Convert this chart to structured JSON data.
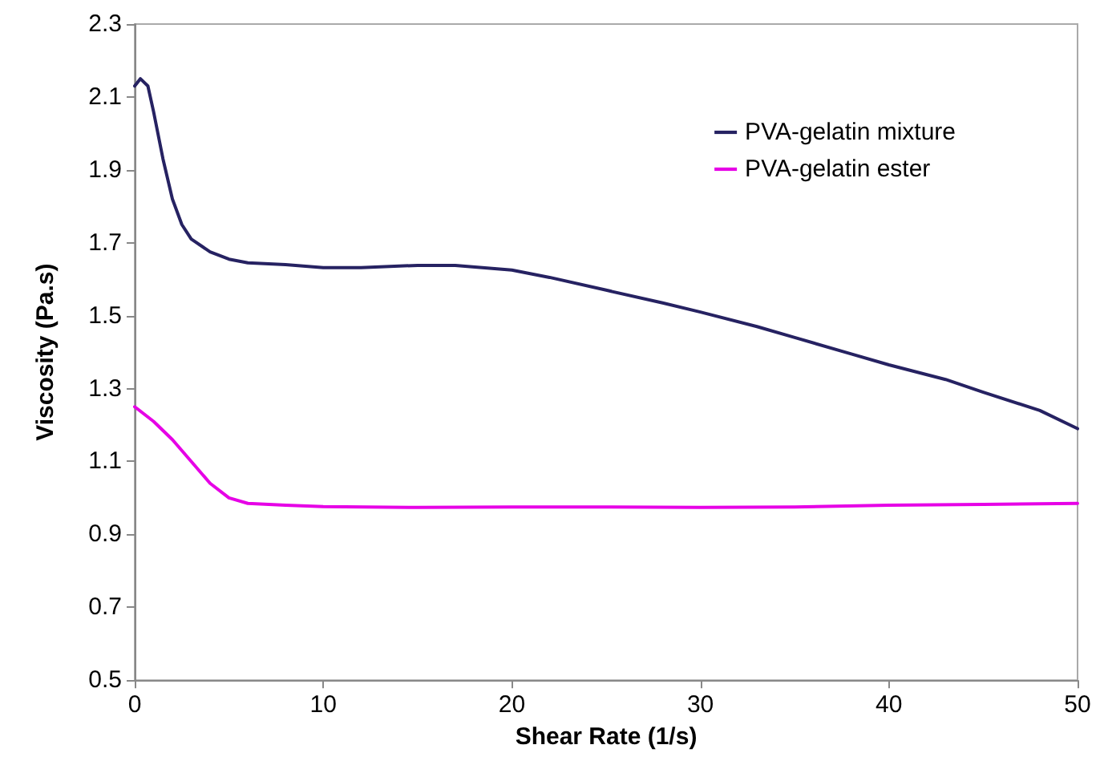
{
  "chart_data": {
    "type": "line",
    "xlabel": "Shear Rate (1/s)",
    "ylabel": "Viscosity (Pa.s)",
    "xlim": [
      0,
      50
    ],
    "xticks": [
      0,
      10,
      20,
      30,
      40,
      50
    ],
    "ylim": [
      0.5,
      2.3
    ],
    "yticks": [
      0.5,
      0.7,
      0.9,
      1.1,
      1.3,
      1.5,
      1.7,
      1.9,
      2.1,
      2.3
    ],
    "grid": false,
    "legend": "top right",
    "marker": "none",
    "line_style": "solid",
    "series": [
      {
        "name": "PVA-gelatin mixture",
        "color": "#262262",
        "x": [
          0,
          0.3,
          0.7,
          1,
          1.5,
          2,
          2.5,
          3,
          4,
          5,
          6,
          8,
          10,
          12,
          15,
          17,
          20,
          22,
          25,
          28,
          30,
          33,
          35,
          38,
          40,
          43,
          45,
          48,
          50
        ],
        "values": [
          2.13,
          2.15,
          2.13,
          2.06,
          1.93,
          1.82,
          1.75,
          1.71,
          1.675,
          1.655,
          1.645,
          1.64,
          1.632,
          1.632,
          1.638,
          1.638,
          1.625,
          1.605,
          1.57,
          1.535,
          1.51,
          1.47,
          1.44,
          1.395,
          1.365,
          1.325,
          1.29,
          1.24,
          1.19
        ]
      },
      {
        "name": "PVA-gelatin ester",
        "color": "#e600e6",
        "x": [
          0,
          1,
          2,
          3,
          4,
          5,
          6,
          8,
          10,
          15,
          20,
          25,
          30,
          35,
          40,
          45,
          50
        ],
        "values": [
          1.25,
          1.21,
          1.16,
          1.1,
          1.04,
          1.0,
          0.985,
          0.98,
          0.976,
          0.974,
          0.975,
          0.975,
          0.974,
          0.975,
          0.98,
          0.982,
          0.985
        ]
      }
    ]
  }
}
